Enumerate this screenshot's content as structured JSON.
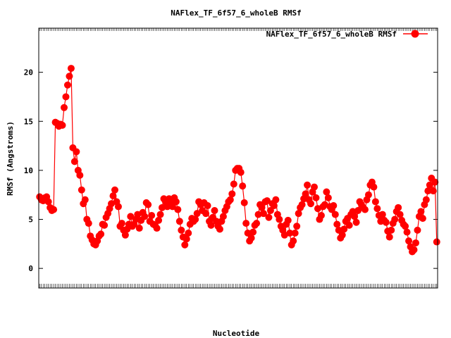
{
  "chart_data": {
    "type": "line",
    "title": "NAFlex_TF_6f57_6_wholeB RMSf",
    "xlabel": "Nucleotide",
    "ylabel": "RMSf (Angstroms)",
    "ylim": [
      -2,
      24.5
    ],
    "yticks": [
      0,
      5,
      10,
      15,
      20
    ],
    "xticks_note": "dense, unreadable per-nucleotide tick labels",
    "legend_position": "top-right",
    "grid": false,
    "series": [
      {
        "name": "NAFlex_TF_6f57_6_wholeB RMSf",
        "color": "#ff0000",
        "values": [
          7.3,
          7.0,
          6.9,
          7.2,
          7.3,
          6.8,
          6.2,
          5.9,
          6.0,
          14.9,
          14.8,
          14.5,
          14.7,
          14.6,
          16.4,
          17.5,
          18.7,
          19.6,
          20.4,
          12.3,
          10.9,
          11.9,
          10.0,
          9.5,
          8.0,
          6.6,
          7.0,
          5.0,
          4.6,
          3.3,
          2.9,
          2.5,
          2.4,
          2.8,
          3.3,
          3.5,
          4.5,
          4.4,
          5.2,
          5.6,
          6.1,
          6.6,
          7.4,
          8.0,
          6.8,
          6.3,
          4.3,
          4.6,
          3.9,
          3.4,
          4.0,
          4.5,
          5.3,
          4.3,
          4.5,
          5.0,
          5.5,
          4.1,
          4.9,
          5.7,
          5.3,
          6.7,
          6.5,
          4.8,
          5.4,
          4.5,
          4.4,
          4.1,
          4.9,
          5.5,
          6.2,
          7.1,
          6.8,
          6.3,
          7.1,
          6.8,
          6.3,
          7.2,
          6.8,
          6.0,
          4.8,
          3.9,
          3.2,
          2.4,
          3.0,
          3.6,
          4.5,
          5.1,
          4.8,
          5.0,
          5.6,
          6.8,
          6.5,
          5.9,
          6.7,
          5.6,
          6.4,
          4.8,
          4.4,
          5.2,
          5.9,
          4.8,
          4.3,
          4.0,
          4.8,
          5.3,
          5.9,
          6.3,
          6.8,
          7.0,
          7.6,
          8.6,
          10.0,
          10.2,
          10.2,
          9.8,
          8.4,
          6.7,
          4.6,
          3.6,
          2.8,
          3.1,
          3.7,
          4.4,
          4.6,
          5.5,
          6.5,
          6.2,
          5.6,
          6.8,
          6.9,
          5.2,
          5.9,
          6.6,
          6.4,
          7.0,
          5.5,
          5.0,
          4.3,
          3.9,
          3.4,
          4.5,
          4.9,
          3.6,
          2.4,
          2.8,
          3.6,
          4.3,
          5.6,
          6.2,
          6.5,
          7.1,
          7.6,
          8.5,
          7.0,
          6.6,
          7.8,
          8.3,
          7.2,
          6.1,
          5.0,
          5.4,
          6.3,
          6.5,
          7.8,
          7.2,
          6.3,
          6.0,
          6.4,
          5.5,
          4.5,
          3.9,
          3.1,
          3.4,
          4.0,
          4.8,
          5.1,
          4.4,
          5.5,
          5.8,
          5.3,
          4.7,
          5.9,
          6.8,
          6.5,
          6.2,
          6.0,
          7.0,
          7.5,
          8.5,
          8.8,
          8.3,
          6.8,
          6.1,
          5.4,
          4.8,
          5.5,
          4.9,
          4.7,
          3.8,
          3.2,
          3.9,
          4.6,
          5.0,
          5.8,
          6.2,
          5.5,
          4.9,
          4.5,
          4.3,
          3.7,
          2.8,
          2.2,
          1.7,
          1.9,
          2.6,
          3.9,
          5.3,
          5.8,
          5.1,
          6.5,
          7.0,
          7.9,
          8.5,
          9.2,
          7.9,
          8.8,
          2.7
        ]
      }
    ]
  }
}
